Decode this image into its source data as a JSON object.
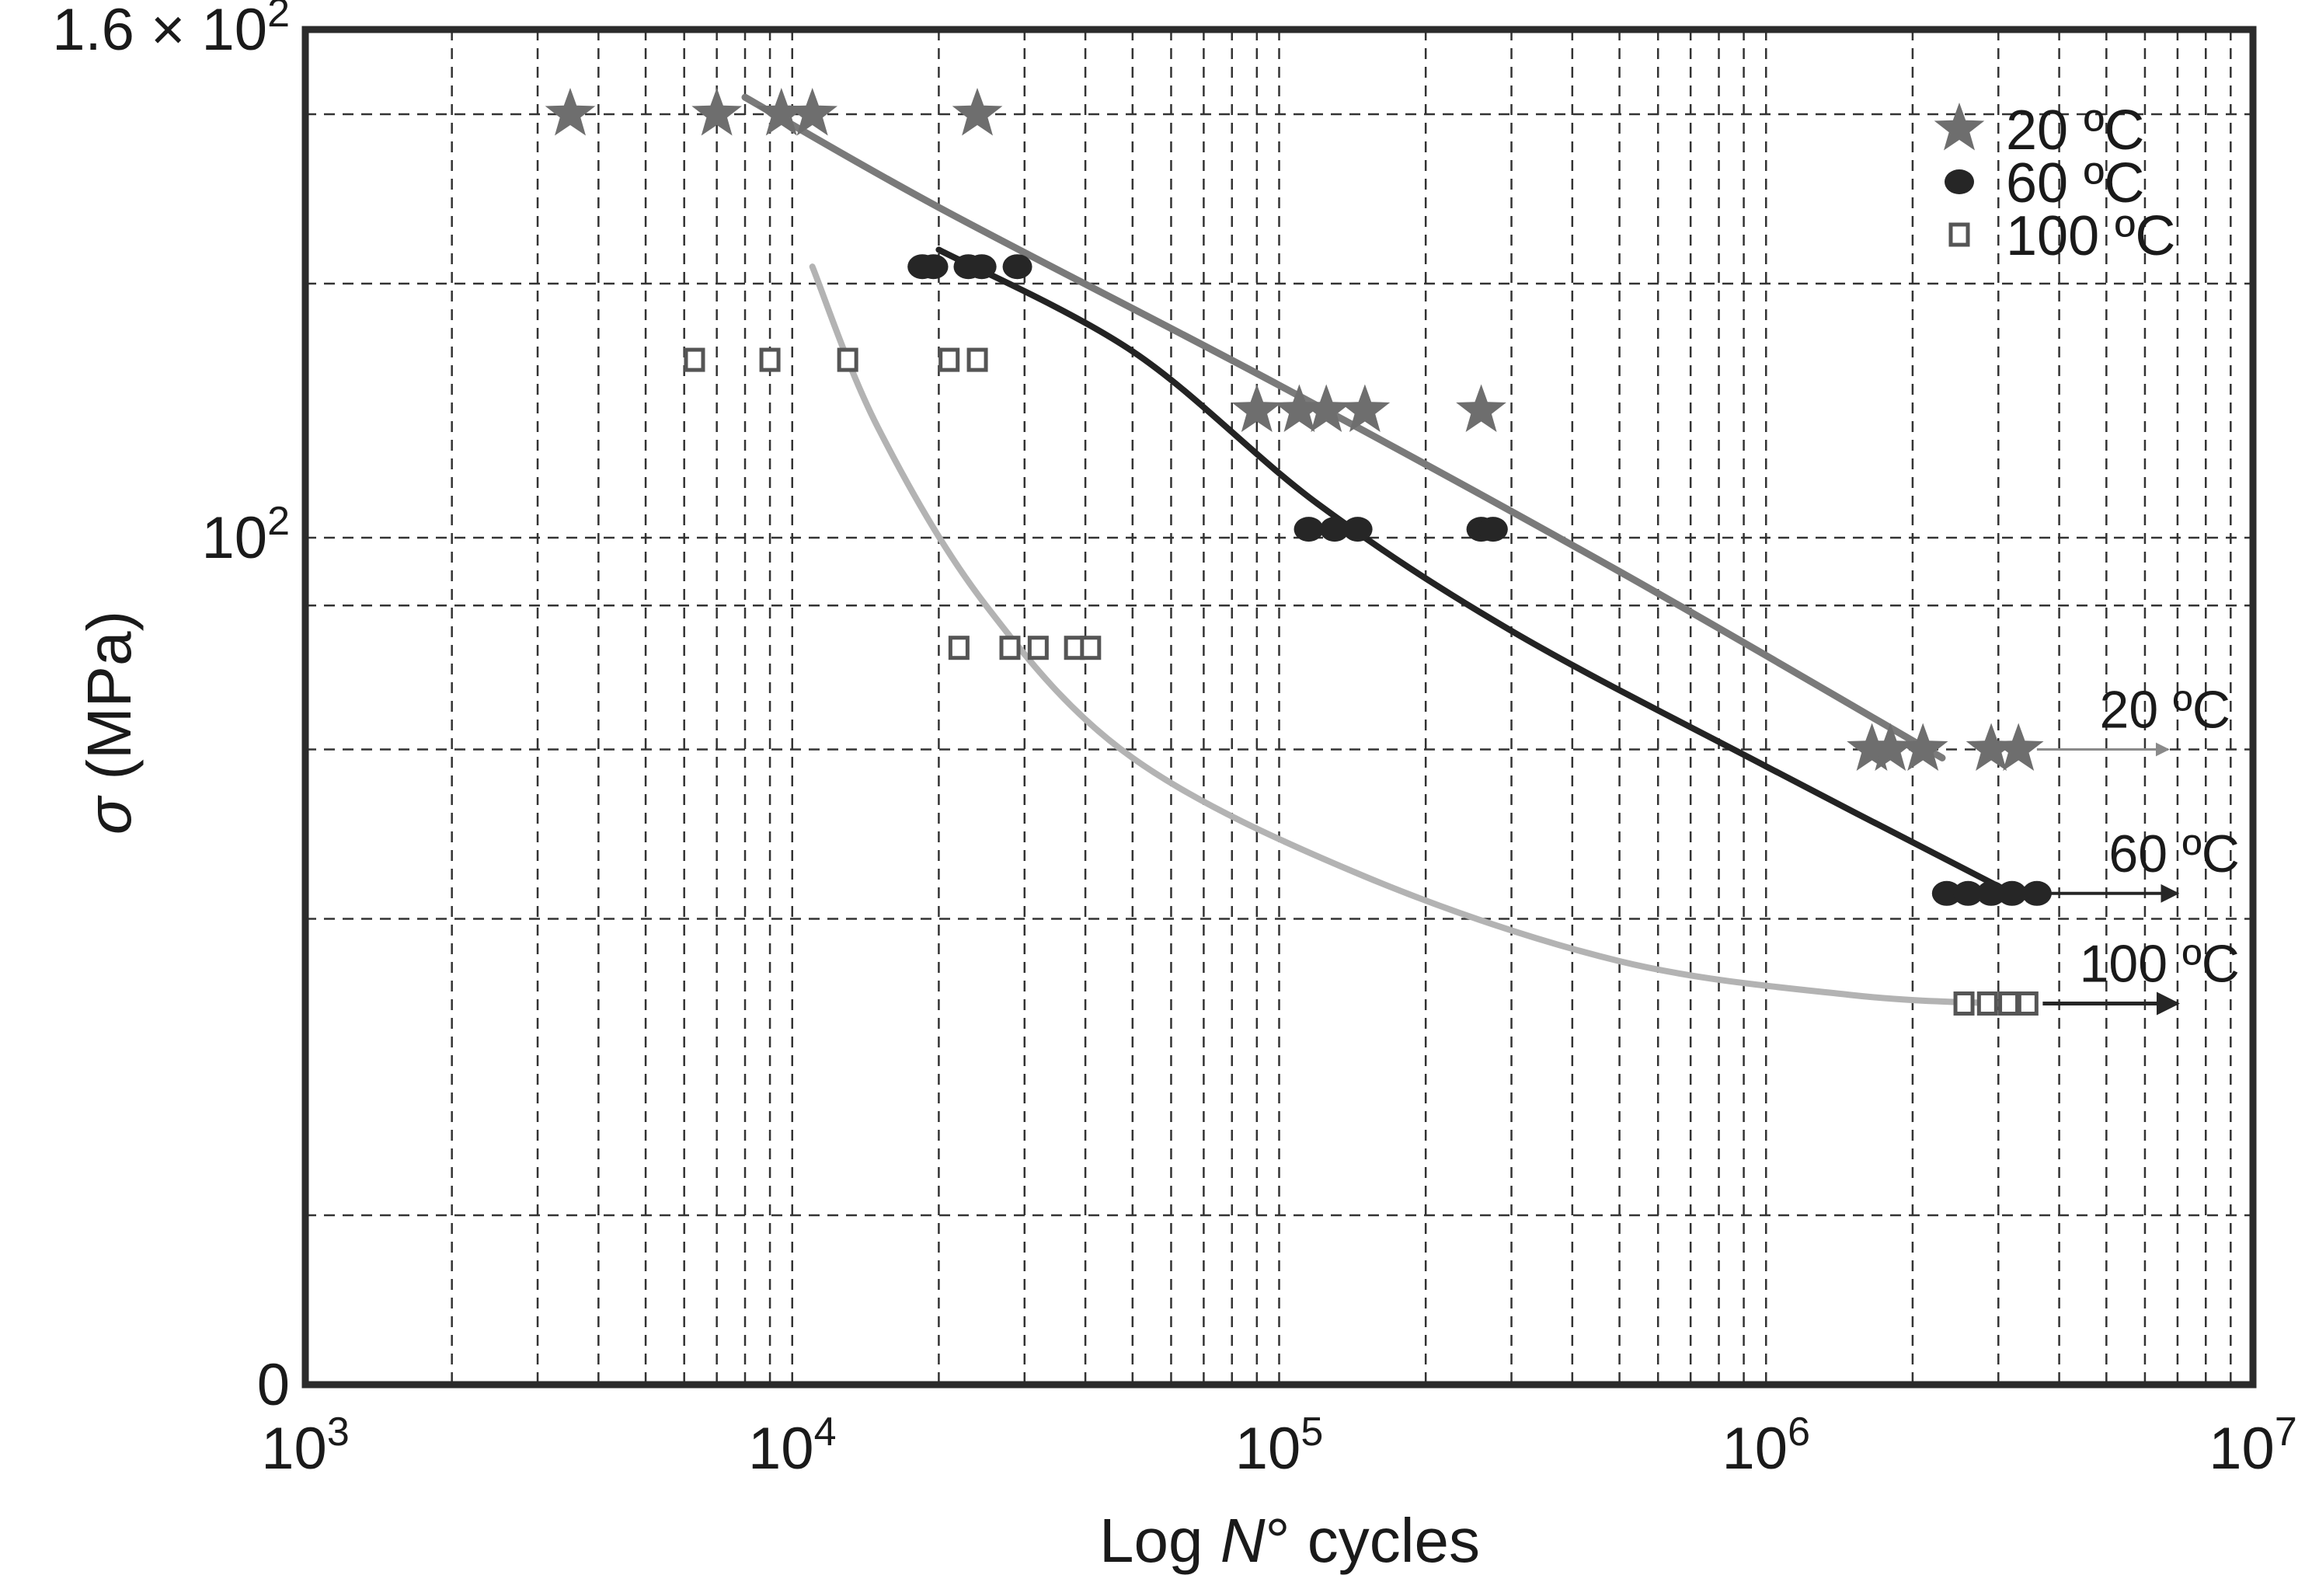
{
  "chart_data": {
    "type": "scatter",
    "title": "",
    "xlabel": "Log N° cycles",
    "ylabel": "σ (MPa)",
    "x_scale": "log",
    "xlim": [
      1000,
      10000000
    ],
    "ylim": [
      0,
      160
    ],
    "x_ticks": [
      {
        "value": 1000,
        "base": "10",
        "exp": "3"
      },
      {
        "value": 10000,
        "base": "10",
        "exp": "4"
      },
      {
        "value": 100000,
        "base": "10",
        "exp": "5"
      },
      {
        "value": 1000000,
        "base": "10",
        "exp": "6"
      },
      {
        "value": 10000000,
        "base": "10",
        "exp": "7"
      }
    ],
    "y_ticks": [
      {
        "value": 0,
        "label": "0",
        "base": "",
        "exp": ""
      },
      {
        "value": 100,
        "label": "",
        "base": "10",
        "exp": "2"
      },
      {
        "value": 160,
        "label": "1.6 × ",
        "base": "10",
        "exp": "2"
      }
    ],
    "y_gridlines": [
      20,
      55,
      75,
      92,
      100,
      130,
      150
    ],
    "series": [
      {
        "name": "20 ºC",
        "marker": "star",
        "color": "#6e6e6e",
        "points": [
          [
            3500,
            150
          ],
          [
            7000,
            150
          ],
          [
            9500,
            150
          ],
          [
            11000,
            150
          ],
          [
            24000,
            150
          ],
          [
            90000,
            115
          ],
          [
            110000,
            115
          ],
          [
            125000,
            115
          ],
          [
            150000,
            115
          ],
          [
            260000,
            115
          ],
          [
            1650000,
            75
          ],
          [
            1800000,
            75
          ],
          [
            2100000,
            75
          ],
          [
            2900000,
            75
          ],
          [
            3300000,
            75
          ]
        ],
        "fit": [
          [
            8000,
            152
          ],
          [
            20000,
            139
          ],
          [
            100000,
            118
          ],
          [
            500000,
            96
          ],
          [
            2300000,
            74
          ]
        ],
        "runout_label": "20 ºC"
      },
      {
        "name": "60 ºC",
        "marker": "circle",
        "color": "#262626",
        "points": [
          [
            18500,
            132
          ],
          [
            19500,
            132
          ],
          [
            23000,
            132
          ],
          [
            24500,
            132
          ],
          [
            29000,
            132
          ],
          [
            115000,
            101
          ],
          [
            130000,
            101
          ],
          [
            145000,
            101
          ],
          [
            260000,
            101
          ],
          [
            275000,
            101
          ],
          [
            2350000,
            58
          ],
          [
            2600000,
            58
          ],
          [
            2900000,
            58
          ],
          [
            3200000,
            58
          ],
          [
            3600000,
            58
          ]
        ],
        "fit": [
          [
            20000,
            134
          ],
          [
            50000,
            122
          ],
          [
            120000,
            104
          ],
          [
            300000,
            89
          ],
          [
            1000000,
            73
          ],
          [
            3200000,
            58
          ]
        ],
        "runout_label": "60 ºC"
      },
      {
        "name": "100 ºC",
        "marker": "square",
        "color": "#8c8c8c",
        "points": [
          [
            6300,
            121
          ],
          [
            9000,
            121
          ],
          [
            13000,
            121
          ],
          [
            21000,
            121
          ],
          [
            24000,
            121
          ],
          [
            22000,
            87
          ],
          [
            28000,
            87
          ],
          [
            32000,
            87
          ],
          [
            38000,
            87
          ],
          [
            41000,
            87
          ],
          [
            2550000,
            45
          ],
          [
            2850000,
            45
          ],
          [
            3150000,
            45
          ],
          [
            3450000,
            45
          ]
        ],
        "fit": [
          [
            11000,
            132
          ],
          [
            15000,
            113
          ],
          [
            25000,
            92
          ],
          [
            50000,
            74
          ],
          [
            150000,
            60
          ],
          [
            500000,
            50
          ],
          [
            1500000,
            46
          ],
          [
            3000000,
            45
          ]
        ],
        "runout_label": "100 ºC"
      }
    ],
    "runouts": [
      {
        "series": "20 ºC",
        "from_x": 3600000,
        "to_x": 6700000,
        "y": 75
      },
      {
        "series": "60 ºC",
        "from_x": 3800000,
        "to_x": 7000000,
        "y": 58
      },
      {
        "series": "100 ºC",
        "from_x": 3700000,
        "to_x": 7000000,
        "y": 45
      }
    ],
    "legend": {
      "position": "top-right",
      "entries": [
        {
          "label": "20 ºC",
          "marker": "star"
        },
        {
          "label": "60 ºC",
          "marker": "circle"
        },
        {
          "label": "100 ºC",
          "marker": "square"
        }
      ]
    },
    "grid": true
  }
}
